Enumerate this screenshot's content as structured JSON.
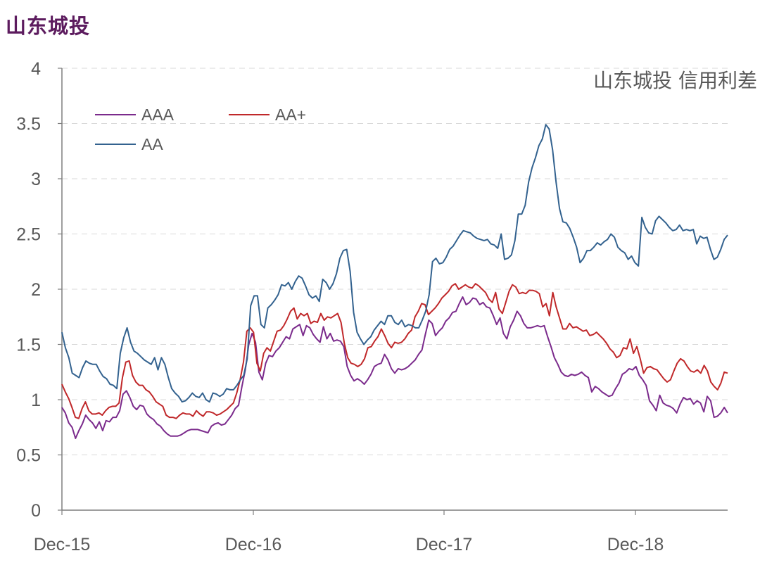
{
  "page_title": "山东城投",
  "chart_data": {
    "type": "line",
    "title": "山东城投 信用利差",
    "xlabel": "",
    "ylabel": "",
    "ylim": [
      0,
      4
    ],
    "yticks": [
      "0",
      "0.5",
      "1",
      "1.5",
      "2",
      "2.5",
      "3",
      "3.5",
      "4"
    ],
    "xticks": [
      "Dec-15",
      "Dec-16",
      "Dec-17",
      "Dec-18"
    ],
    "x_start": "Dec-15",
    "x_end": "Jun-19",
    "grid": "horizontal-dashed",
    "legend_position": "top-left",
    "colors": {
      "AAA": "#7b2b8c",
      "AA+": "#c0282a",
      "AA": "#33628f"
    },
    "series": [
      {
        "name": "AAA",
        "values": [
          0.93,
          0.88,
          0.79,
          0.75,
          0.65,
          0.72,
          0.78,
          0.86,
          0.82,
          0.79,
          0.74,
          0.8,
          0.72,
          0.81,
          0.8,
          0.84,
          0.84,
          0.9,
          1.05,
          1.08,
          1.02,
          0.94,
          0.91,
          0.95,
          0.94,
          0.87,
          0.84,
          0.82,
          0.78,
          0.76,
          0.72,
          0.69,
          0.67,
          0.67,
          0.67,
          0.68,
          0.7,
          0.72,
          0.73,
          0.73,
          0.73,
          0.72,
          0.71,
          0.7,
          0.76,
          0.78,
          0.79,
          0.77,
          0.78,
          0.82,
          0.86,
          0.92,
          0.95,
          1.12,
          1.27,
          1.5,
          1.6,
          1.52,
          1.25,
          1.18,
          1.33,
          1.4,
          1.39,
          1.44,
          1.47,
          1.52,
          1.57,
          1.55,
          1.64,
          1.66,
          1.68,
          1.58,
          1.67,
          1.65,
          1.59,
          1.55,
          1.52,
          1.66,
          1.55,
          1.6,
          1.53,
          1.54,
          1.53,
          1.48,
          1.3,
          1.22,
          1.17,
          1.19,
          1.17,
          1.14,
          1.18,
          1.23,
          1.3,
          1.32,
          1.33,
          1.41,
          1.36,
          1.28,
          1.24,
          1.28,
          1.27,
          1.28,
          1.3,
          1.33,
          1.36,
          1.41,
          1.45,
          1.59,
          1.72,
          1.69,
          1.58,
          1.62,
          1.65,
          1.71,
          1.74,
          1.79,
          1.8,
          1.87,
          1.93,
          1.86,
          1.88,
          1.92,
          1.91,
          1.86,
          1.88,
          1.84,
          1.83,
          1.76,
          1.68,
          1.74,
          1.6,
          1.55,
          1.66,
          1.72,
          1.8,
          1.76,
          1.69,
          1.65,
          1.65,
          1.66,
          1.67,
          1.66,
          1.67,
          1.57,
          1.48,
          1.38,
          1.32,
          1.25,
          1.22,
          1.21,
          1.23,
          1.22,
          1.23,
          1.25,
          1.22,
          1.2,
          1.07,
          1.12,
          1.1,
          1.07,
          1.05,
          1.03,
          1.04,
          1.1,
          1.15,
          1.23,
          1.25,
          1.28,
          1.27,
          1.3,
          1.22,
          1.18,
          1.13,
          0.99,
          0.95,
          0.9,
          1.04,
          0.97,
          0.95,
          0.94,
          0.92,
          0.88,
          0.96,
          1.02,
          1.0,
          1.01,
          0.96,
          0.99,
          0.97,
          0.89,
          1.03,
          0.99,
          0.84,
          0.85,
          0.88,
          0.93,
          0.88
        ]
      },
      {
        "name": "AA+",
        "values": [
          1.14,
          1.07,
          1.01,
          0.93,
          0.84,
          0.83,
          0.92,
          0.98,
          0.9,
          0.87,
          0.87,
          0.88,
          0.86,
          0.9,
          0.93,
          0.94,
          0.94,
          0.97,
          1.2,
          1.34,
          1.35,
          1.22,
          1.16,
          1.13,
          1.13,
          1.09,
          1.07,
          1.03,
          0.98,
          0.96,
          0.94,
          0.86,
          0.84,
          0.84,
          0.83,
          0.86,
          0.88,
          0.87,
          0.87,
          0.85,
          0.9,
          0.87,
          0.85,
          0.89,
          0.89,
          0.88,
          0.86,
          0.87,
          0.89,
          0.91,
          0.94,
          0.97,
          1.06,
          1.18,
          1.34,
          1.62,
          1.65,
          1.61,
          1.33,
          1.26,
          1.42,
          1.47,
          1.44,
          1.53,
          1.62,
          1.63,
          1.67,
          1.73,
          1.8,
          1.83,
          1.73,
          1.78,
          1.76,
          1.78,
          1.69,
          1.71,
          1.7,
          1.78,
          1.72,
          1.75,
          1.74,
          1.76,
          1.78,
          1.7,
          1.51,
          1.38,
          1.33,
          1.32,
          1.3,
          1.32,
          1.37,
          1.47,
          1.48,
          1.53,
          1.57,
          1.64,
          1.58,
          1.51,
          1.47,
          1.52,
          1.51,
          1.52,
          1.55,
          1.6,
          1.63,
          1.75,
          1.8,
          1.87,
          1.86,
          1.77,
          1.8,
          1.83,
          1.87,
          1.92,
          1.95,
          1.98,
          2.03,
          2.05,
          2.0,
          2.02,
          2.04,
          2.02,
          2.01,
          2.05,
          2.03,
          2.0,
          1.97,
          1.91,
          1.88,
          1.97,
          1.82,
          1.78,
          1.88,
          1.98,
          2.04,
          2.02,
          1.96,
          1.97,
          1.96,
          1.99,
          1.99,
          1.98,
          1.96,
          1.84,
          1.87,
          1.76,
          1.97,
          1.84,
          1.74,
          1.64,
          1.64,
          1.69,
          1.65,
          1.66,
          1.64,
          1.62,
          1.63,
          1.58,
          1.59,
          1.61,
          1.58,
          1.55,
          1.51,
          1.46,
          1.43,
          1.38,
          1.4,
          1.47,
          1.46,
          1.55,
          1.42,
          1.48,
          1.37,
          1.24,
          1.29,
          1.3,
          1.28,
          1.27,
          1.23,
          1.19,
          1.16,
          1.18,
          1.26,
          1.33,
          1.37,
          1.35,
          1.3,
          1.26,
          1.25,
          1.27,
          1.24,
          1.31,
          1.26,
          1.16,
          1.12,
          1.09,
          1.15,
          1.25,
          1.24
        ]
      },
      {
        "name": "AA",
        "values": [
          1.61,
          1.47,
          1.38,
          1.24,
          1.22,
          1.2,
          1.29,
          1.35,
          1.33,
          1.32,
          1.32,
          1.26,
          1.21,
          1.19,
          1.14,
          1.13,
          1.1,
          1.42,
          1.56,
          1.65,
          1.52,
          1.44,
          1.42,
          1.39,
          1.36,
          1.34,
          1.32,
          1.38,
          1.27,
          1.38,
          1.32,
          1.2,
          1.1,
          1.06,
          1.03,
          0.98,
          0.99,
          1.02,
          1.06,
          1.03,
          1.02,
          1.06,
          1.0,
          0.98,
          1.06,
          1.05,
          1.03,
          1.05,
          1.1,
          1.09,
          1.09,
          1.13,
          1.18,
          1.22,
          1.37,
          1.85,
          1.94,
          1.94,
          1.68,
          1.65,
          1.83,
          1.86,
          1.9,
          1.95,
          2.04,
          2.03,
          2.06,
          2.0,
          2.07,
          2.12,
          2.1,
          2.03,
          1.95,
          1.92,
          1.94,
          1.89,
          2.09,
          2.06,
          2.0,
          2.05,
          2.14,
          2.28,
          2.35,
          2.36,
          2.16,
          1.79,
          1.61,
          1.55,
          1.5,
          1.54,
          1.57,
          1.63,
          1.67,
          1.71,
          1.68,
          1.76,
          1.76,
          1.7,
          1.68,
          1.72,
          1.66,
          1.68,
          1.67,
          1.65,
          1.65,
          1.72,
          1.8,
          1.95,
          2.25,
          2.28,
          2.23,
          2.24,
          2.29,
          2.36,
          2.39,
          2.44,
          2.49,
          2.53,
          2.52,
          2.51,
          2.48,
          2.46,
          2.45,
          2.44,
          2.45,
          2.41,
          2.4,
          2.37,
          2.5,
          2.27,
          2.28,
          2.31,
          2.44,
          2.68,
          2.68,
          2.76,
          2.97,
          3.1,
          3.19,
          3.3,
          3.36,
          3.49,
          3.45,
          3.26,
          2.97,
          2.73,
          2.61,
          2.6,
          2.55,
          2.47,
          2.38,
          2.24,
          2.28,
          2.35,
          2.35,
          2.38,
          2.42,
          2.4,
          2.43,
          2.45,
          2.5,
          2.47,
          2.38,
          2.35,
          2.33,
          2.27,
          2.3,
          2.24,
          2.21,
          2.65,
          2.56,
          2.51,
          2.5,
          2.62,
          2.66,
          2.63,
          2.6,
          2.56,
          2.53,
          2.54,
          2.58,
          2.53,
          2.54,
          2.53,
          2.54,
          2.41,
          2.48,
          2.46,
          2.47,
          2.36,
          2.27,
          2.29,
          2.36,
          2.45,
          2.49
        ]
      }
    ]
  }
}
